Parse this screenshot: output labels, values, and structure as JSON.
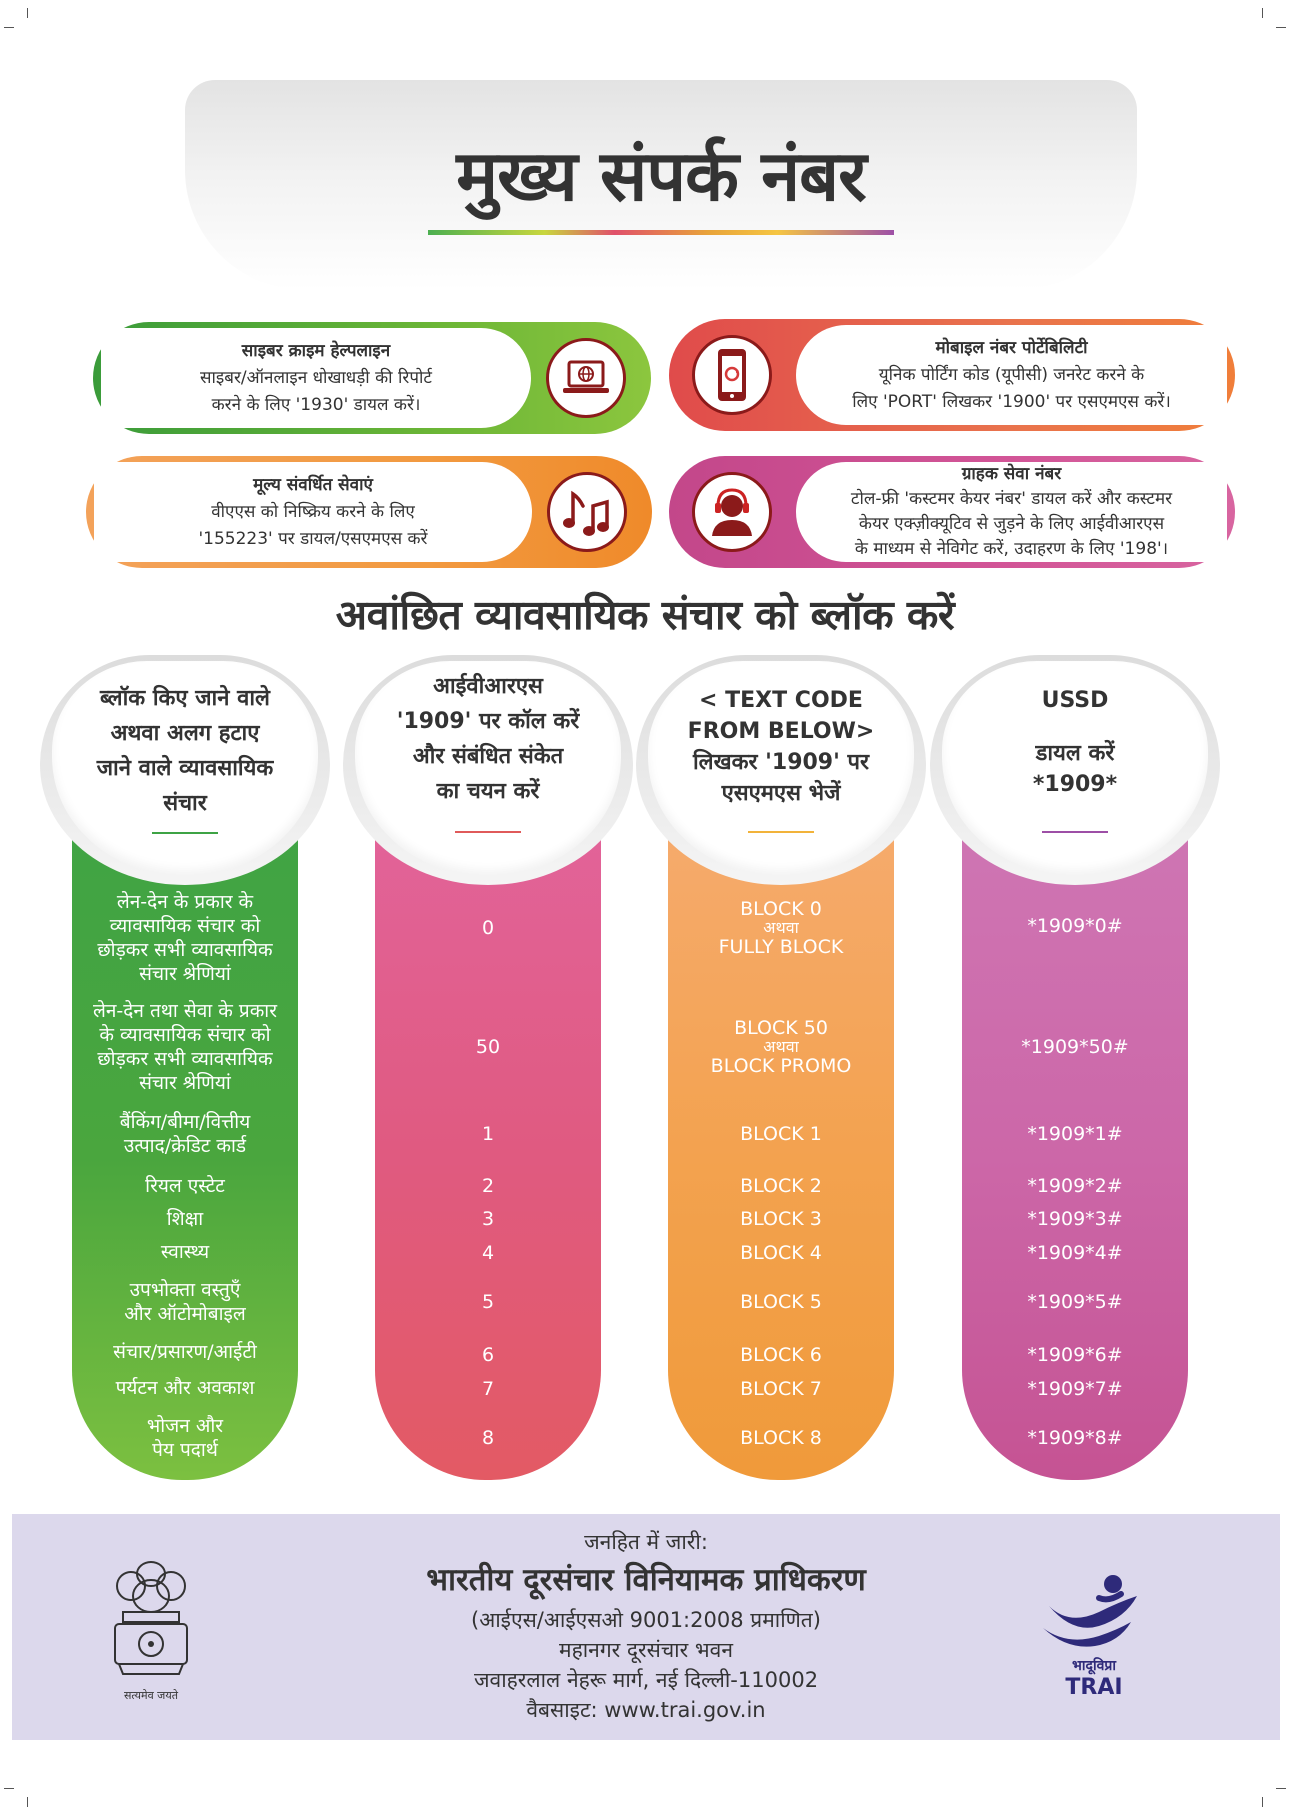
{
  "header": {
    "title": "मुख्य संपर्क नंबर"
  },
  "cards": {
    "cyber": {
      "title": "साइबर क्राइम हेल्पलाइन",
      "line1": "साइबर/ऑनलाइन धोखाधड़ी की रिपोर्ट",
      "line2": "करने के लिए '1930' डायल करें।",
      "icon": "laptop-globe-icon"
    },
    "mnp": {
      "title": "मोबाइल नंबर पोर्टेबिलिटी",
      "line1": "यूनिक पोर्टिंग कोड (यूपीसी) जनरेट करने के",
      "line2": "लिए 'PORT' लिखकर '1900' पर एसएमएस करें।",
      "icon": "mobile-port-icon"
    },
    "vas": {
      "title": "मूल्य संवर्धित सेवाएं",
      "line1": "वीएएस को निष्क्रिय करने के लिए",
      "line2": "'155223' पर डायल/एसएमएस करें",
      "icon": "music-notes-icon"
    },
    "care": {
      "title": "ग्राहक सेवा नंबर",
      "line1": "टोल-फ्री 'कस्टमर केयर नंबर' डायल करें और कस्टमर",
      "line2": "केयर एक्ज़ीक्यूटिव से जुड़ने के लिए आईवीआरएस",
      "line3": "के माध्यम से नेविगेट करें, उदाहरण के लिए '198'।",
      "icon": "headset-agent-icon"
    }
  },
  "section_title": "अवांछित व्यावसायिक संचार को ब्लॉक करें",
  "columns": {
    "categories": {
      "head": [
        "ब्लॉक किए जाने वाले",
        "अथवा अलग हटाए",
        "जाने वाले व्यावसायिक",
        "संचार"
      ],
      "rows": [
        [
          "लेन-देन के प्रकार के",
          "व्यावसायिक संचार को",
          "छोड़कर सभी व्यावसायिक",
          "संचार श्रेणियां"
        ],
        [
          "लेन-देन तथा सेवा के प्रकार",
          "के व्यावसायिक संचार को",
          "छोड़कर सभी व्यावसायिक",
          "संचार श्रेणियां"
        ],
        [
          "बैंकिंग/बीमा/वित्तीय",
          "उत्पाद/क्रेडिट कार्ड"
        ],
        [
          "रियल एस्टेट"
        ],
        [
          "शिक्षा"
        ],
        [
          "स्वास्थ्य"
        ],
        [
          "उपभोक्ता वस्तुएँ",
          "और ऑटोमोबाइल"
        ],
        [
          "संचार/प्रसारण/आईटी"
        ],
        [
          "पर्यटन और अवकाश"
        ],
        [
          "भोजन और",
          "पेय पदार्थ"
        ]
      ]
    },
    "ivrs": {
      "head": [
        "आईवीआरएस",
        "'1909' पर कॉल करें",
        "और संबंधित संकेत",
        "का चयन करें"
      ],
      "rows": [
        "0",
        "50",
        "1",
        "2",
        "3",
        "4",
        "5",
        "6",
        "7",
        "8"
      ]
    },
    "sms": {
      "head": [
        "< TEXT CODE",
        "FROM BELOW>",
        "लिखकर '1909' पर",
        "एसएमएस भेजें"
      ],
      "rows": [
        [
          "BLOCK 0",
          "अथवा",
          "FULLY BLOCK"
        ],
        [
          "BLOCK 50",
          "अथवा",
          "BLOCK PROMO"
        ],
        [
          "BLOCK 1"
        ],
        [
          "BLOCK 2"
        ],
        [
          "BLOCK 3"
        ],
        [
          "BLOCK 4"
        ],
        [
          "BLOCK 5"
        ],
        [
          "BLOCK 6"
        ],
        [
          "BLOCK 7"
        ],
        [
          "BLOCK 8"
        ]
      ]
    },
    "ussd": {
      "head": [
        "USSD",
        "",
        "डायल करें",
        "*1909*"
      ],
      "rows": [
        "*1909*0#",
        "*1909*50#",
        "*1909*1#",
        "*1909*2#",
        "*1909*3#",
        "*1909*4#",
        "*1909*5#",
        "*1909*6#",
        "*1909*7#",
        "*1909*8#"
      ]
    }
  },
  "footer": {
    "issued": "जनहित में जारी:",
    "org": "भारतीय दूरसंचार विनियामक प्राधिकरण",
    "cert": "(आईएस/आईएसओ 9001:2008 प्रमाणित)",
    "building": "महानगर दूरसंचार भवन",
    "address": "जवाहरलाल नेहरू मार्ग, नई दिल्ली-110002",
    "website": "वैबसाइट: www.trai.gov.in",
    "emblem_motto": "सत्यमेव जयते",
    "logo_hindi": "भादूविप्रा",
    "logo_english": "TRAI"
  }
}
